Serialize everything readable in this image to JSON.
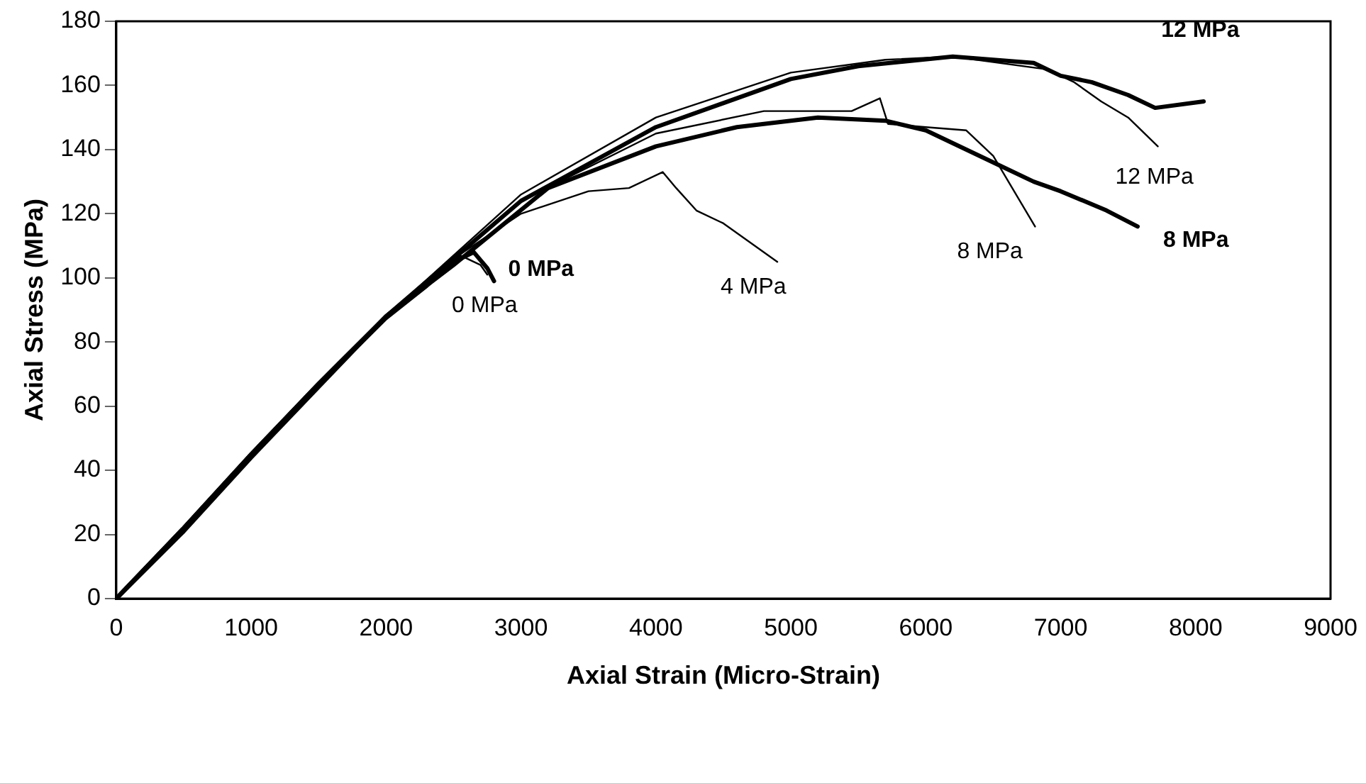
{
  "chart_data": {
    "type": "line",
    "xlabel": "Axial Strain (Micro-Strain)",
    "ylabel": "Axial Stress (MPa)",
    "xlim": [
      0,
      9000
    ],
    "xticks": [
      0,
      1000,
      2000,
      3000,
      4000,
      5000,
      6000,
      7000,
      8000,
      9000
    ],
    "ylim": [
      0,
      180
    ],
    "yticks": [
      0,
      20,
      40,
      60,
      80,
      100,
      120,
      140,
      160,
      180
    ],
    "grid": false,
    "legend": false,
    "marker": "none",
    "line_style": "solid",
    "series": [
      {
        "name": "0 MPa",
        "color": "#000000",
        "x": [
          0,
          500,
          1000,
          1500,
          2000,
          2300,
          2500,
          2650,
          2750,
          2800
        ],
        "values": [
          0,
          22,
          45,
          67,
          88,
          98,
          105,
          108,
          103,
          99
        ]
      },
      {
        "name": "0 MPa",
        "color": "#000000",
        "x": [
          0,
          500,
          1000,
          1500,
          2000,
          2300,
          2550,
          2700,
          2750
        ],
        "values": [
          0,
          21,
          44,
          66,
          87,
          97,
          107,
          104,
          101
        ]
      },
      {
        "name": "4 MPa",
        "color": "#000000",
        "x": [
          0,
          500,
          1000,
          1500,
          2000,
          2500,
          3000,
          3500,
          3800,
          4050,
          4150,
          4300,
          4500,
          4900
        ],
        "values": [
          0,
          22,
          45,
          66,
          88,
          106,
          120,
          127,
          128,
          133,
          128,
          121,
          117,
          105
        ]
      },
      {
        "name": "8 MPa",
        "color": "#000000",
        "x": [
          0,
          500,
          1000,
          1500,
          2000,
          2500,
          3000,
          4000,
          4800,
          5450,
          5660,
          5720,
          6000,
          6300,
          6500,
          6810
        ],
        "values": [
          0,
          22,
          45,
          67,
          88,
          106,
          124,
          145,
          152,
          152,
          156,
          148,
          147,
          146,
          138,
          116
        ]
      },
      {
        "name": "8 MPa",
        "color": "#000000",
        "x": [
          0,
          500,
          1000,
          1500,
          2000,
          2500,
          3200,
          4000,
          4600,
          5200,
          5700,
          6000,
          6500,
          6800,
          7000,
          7340,
          7570
        ],
        "values": [
          0,
          21,
          44,
          66,
          88,
          104,
          128,
          141,
          147,
          150,
          149,
          146,
          136,
          130,
          127,
          121,
          116
        ]
      },
      {
        "name": "12 MPa",
        "color": "#000000",
        "x": [
          0,
          500,
          1000,
          1500,
          2000,
          2500,
          3000,
          4000,
          5000,
          5700,
          6200,
          6900,
          7100,
          7300,
          7500,
          7720
        ],
        "values": [
          0,
          22,
          45,
          67,
          88,
          107,
          126,
          150,
          164,
          168,
          169,
          165,
          161,
          155,
          150,
          141
        ]
      },
      {
        "name": "12 MPa",
        "color": "#000000",
        "x": [
          0,
          500,
          1000,
          1500,
          2000,
          2500,
          3000,
          4000,
          5000,
          5500,
          6200,
          6800,
          7000,
          7230,
          7500,
          7700,
          8060
        ],
        "values": [
          0,
          22,
          45,
          67,
          88,
          106,
          124,
          147,
          162,
          166,
          169,
          167,
          163,
          161,
          157,
          153,
          155
        ]
      }
    ]
  }
}
